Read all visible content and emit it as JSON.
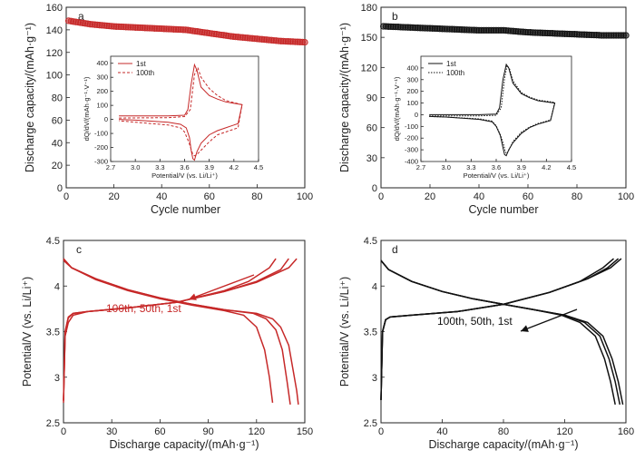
{
  "chart_data": [
    {
      "panel": "a",
      "type": "scatter",
      "xlabel": "Cycle number",
      "ylabel": "Discharge capacity/(mAh·g⁻¹)",
      "xlim": [
        0,
        100
      ],
      "ylim": [
        0,
        160
      ],
      "xticks": [
        0,
        20,
        40,
        60,
        80,
        100
      ],
      "yticks": [
        0,
        20,
        40,
        60,
        80,
        100,
        120,
        140,
        160
      ],
      "color": "#c62828",
      "series": [
        {
          "x": [
            1,
            10,
            20,
            30,
            40,
            50,
            60,
            70,
            80,
            90,
            100
          ],
          "y": [
            148,
            145,
            143,
            142,
            141,
            140,
            137,
            134,
            132,
            130,
            129
          ]
        }
      ],
      "inset": {
        "type": "line",
        "xlabel": "Potential/V (vs. Li/Li⁺)",
        "ylabel": "dQ/dV/(mAh·g⁻¹·V⁻¹)",
        "xlim": [
          2.7,
          4.5
        ],
        "ylim": [
          -300,
          450
        ],
        "xticks": [
          2.7,
          3.0,
          3.3,
          3.6,
          3.9,
          4.2,
          4.5
        ],
        "yticks": [
          -300,
          -200,
          -100,
          0,
          100,
          200,
          300,
          400
        ],
        "series": [
          {
            "name": "1st",
            "style": "solid",
            "x": [
              2.8,
              3.4,
              3.6,
              3.64,
              3.68,
              3.72,
              3.75,
              3.8,
              3.9,
              4.0,
              4.1,
              4.3,
              4.25,
              4.2,
              4.1,
              4.0,
              3.9,
              3.8,
              3.75,
              3.72,
              3.7,
              3.68,
              3.66,
              3.62,
              3.55,
              3.4,
              3.0,
              2.8
            ],
            "y": [
              25,
              25,
              30,
              70,
              250,
              390,
              350,
              230,
              170,
              145,
              125,
              105,
              -30,
              -40,
              -60,
              -80,
              -110,
              -170,
              -230,
              -290,
              -280,
              -220,
              -130,
              -60,
              -35,
              -20,
              -5,
              0
            ]
          },
          {
            "name": "100th",
            "style": "dashed",
            "x": [
              2.8,
              3.4,
              3.6,
              3.67,
              3.72,
              3.76,
              3.8,
              3.9,
              4.0,
              4.1,
              4.3,
              4.25,
              4.2,
              4.1,
              4.0,
              3.9,
              3.8,
              3.75,
              3.72,
              3.7,
              3.65,
              3.6,
              3.55,
              3.4,
              3.0,
              2.8
            ],
            "y": [
              10,
              12,
              20,
              70,
              320,
              370,
              300,
              220,
              170,
              135,
              105,
              -60,
              -70,
              -90,
              -110,
              -160,
              -220,
              -250,
              -260,
              -250,
              -160,
              -90,
              -60,
              -40,
              -20,
              -10
            ]
          }
        ]
      }
    },
    {
      "panel": "b",
      "type": "scatter",
      "xlabel": "Cycle number",
      "ylabel": "Discharge capacity/(mAh·g⁻¹)",
      "xlim": [
        0,
        100
      ],
      "ylim": [
        0,
        180
      ],
      "xticks": [
        0,
        20,
        40,
        60,
        80,
        100
      ],
      "yticks": [
        0,
        30,
        60,
        90,
        120,
        150,
        180
      ],
      "color": "#111111",
      "series": [
        {
          "x": [
            1,
            10,
            20,
            30,
            40,
            50,
            60,
            70,
            80,
            90,
            100
          ],
          "y": [
            161,
            160,
            159,
            158,
            157,
            157,
            155,
            154,
            153,
            152,
            152
          ]
        }
      ],
      "inset": {
        "type": "line",
        "xlabel": "Potential/V (vs. Li/Li⁺)",
        "ylabel": "dQ/dV/(mAh·g⁻¹·V⁻¹)",
        "xlim": [
          2.7,
          4.5
        ],
        "ylim": [
          -400,
          500
        ],
        "xticks": [
          2.7,
          3.0,
          3.3,
          3.6,
          3.9,
          4.2,
          4.5
        ],
        "yticks": [
          -400,
          -300,
          -200,
          -100,
          0,
          100,
          200,
          300,
          400
        ],
        "series": [
          {
            "name": "1st",
            "style": "solid",
            "x": [
              2.8,
              3.4,
              3.6,
              3.64,
              3.68,
              3.72,
              3.75,
              3.8,
              3.9,
              4.0,
              4.1,
              4.3,
              4.25,
              4.2,
              4.1,
              4.0,
              3.9,
              3.8,
              3.75,
              3.72,
              3.7,
              3.68,
              3.65,
              3.6,
              3.55,
              3.4,
              3.0,
              2.8
            ],
            "y": [
              0,
              0,
              5,
              60,
              300,
              430,
              400,
              270,
              180,
              145,
              120,
              100,
              -50,
              -60,
              -80,
              -110,
              -160,
              -240,
              -300,
              -350,
              -340,
              -280,
              -180,
              -100,
              -60,
              -40,
              -20,
              -15
            ]
          },
          {
            "name": "100th",
            "style": "dotted",
            "x": [
              2.8,
              3.4,
              3.6,
              3.66,
              3.7,
              3.73,
              3.76,
              3.8,
              3.9,
              4.0,
              4.1,
              4.3,
              4.25,
              4.2,
              4.1,
              4.0,
              3.9,
              3.8,
              3.76,
              3.73,
              3.71,
              3.69,
              3.65,
              3.6,
              3.55,
              3.4,
              3.0,
              2.8
            ],
            "y": [
              -10,
              -10,
              -5,
              60,
              310,
              420,
              390,
              290,
              190,
              150,
              125,
              105,
              -45,
              -55,
              -75,
              -105,
              -150,
              -230,
              -290,
              -330,
              -320,
              -260,
              -170,
              -95,
              -55,
              -35,
              -20,
              -15
            ]
          }
        ]
      }
    },
    {
      "panel": "c",
      "type": "line",
      "xlabel": "Discharge capacity/(mAh·g⁻¹)",
      "ylabel": "Potential/V (vs. Li/Li⁺)",
      "xlim": [
        0,
        150
      ],
      "ylim": [
        2.5,
        4.5
      ],
      "xticks": [
        0,
        30,
        60,
        90,
        120,
        150
      ],
      "yticks": [
        2.5,
        3.0,
        3.5,
        4.0,
        4.5
      ],
      "color": "#c62828",
      "annotation": "100th, 50th, 1st",
      "series": [
        {
          "cycle": "1st",
          "charge": {
            "x": [
              0,
              1,
              3,
              6,
              15,
              40,
              70,
              100,
              120,
              135,
              140
            ],
            "y": [
              2.72,
              3.5,
              3.65,
              3.7,
              3.72,
              3.76,
              3.82,
              3.94,
              4.05,
              4.18,
              4.3
            ]
          },
          "discharge": {
            "x": [
              0,
              5,
              20,
              40,
              60,
              80,
              100,
              120,
              130,
              135,
              140,
              143,
              145,
              146
            ],
            "y": [
              4.28,
              4.2,
              4.08,
              3.96,
              3.87,
              3.8,
              3.74,
              3.7,
              3.64,
              3.55,
              3.35,
              3.05,
              2.85,
              2.7
            ]
          }
        },
        {
          "cycle": "50th",
          "charge": {
            "x": [
              0,
              1,
              3,
              6,
              15,
              40,
              70,
              100,
              120,
              140,
              145
            ],
            "y": [
              2.74,
              3.5,
              3.66,
              3.7,
              3.72,
              3.76,
              3.82,
              3.94,
              4.04,
              4.2,
              4.3
            ]
          },
          "discharge": {
            "x": [
              0,
              5,
              20,
              40,
              60,
              80,
              100,
              118,
              126,
              132,
              136,
              139,
              141
            ],
            "y": [
              4.3,
              4.2,
              4.08,
              3.96,
              3.87,
              3.8,
              3.74,
              3.7,
              3.64,
              3.52,
              3.3,
              2.95,
              2.7
            ]
          }
        },
        {
          "cycle": "100th",
          "charge": {
            "x": [
              0,
              1,
              3,
              6,
              15,
              40,
              70,
              100,
              115,
              128,
              132
            ],
            "y": [
              2.75,
              3.45,
              3.6,
              3.68,
              3.72,
              3.76,
              3.82,
              3.95,
              4.05,
              4.2,
              4.3
            ]
          },
          "discharge": {
            "x": [
              0,
              5,
              20,
              40,
              60,
              80,
              100,
              112,
              120,
              125,
              128,
              130
            ],
            "y": [
              4.3,
              4.2,
              4.07,
              3.95,
              3.86,
              3.79,
              3.73,
              3.68,
              3.55,
              3.3,
              3.0,
              2.72
            ]
          }
        }
      ]
    },
    {
      "panel": "d",
      "type": "line",
      "xlabel": "Discharge capacity/(mAh·g⁻¹)",
      "ylabel": "Potential/V (vs. Li/Li⁺)",
      "xlim": [
        0,
        160
      ],
      "ylim": [
        2.5,
        4.5
      ],
      "xticks": [
        0,
        40,
        80,
        120,
        160
      ],
      "yticks": [
        2.5,
        3.0,
        3.5,
        4.0,
        4.5
      ],
      "color": "#111111",
      "annotation": "100th, 50th, 1st",
      "series": [
        {
          "cycle": "1st",
          "charge": {
            "x": [
              0,
              1,
              3,
              6,
              20,
              50,
              80,
              110,
              135,
              150,
              157
            ],
            "y": [
              2.75,
              3.5,
              3.63,
              3.66,
              3.68,
              3.72,
              3.8,
              3.93,
              4.08,
              4.2,
              4.3
            ]
          },
          "discharge": {
            "x": [
              0,
              5,
              20,
              40,
              60,
              80,
              100,
              120,
              135,
              145,
              151,
              155,
              158
            ],
            "y": [
              4.28,
              4.18,
              4.05,
              3.94,
              3.86,
              3.8,
              3.74,
              3.68,
              3.6,
              3.45,
              3.2,
              2.95,
              2.7
            ]
          }
        },
        {
          "cycle": "50th",
          "charge": {
            "x": [
              0,
              1,
              3,
              6,
              20,
              50,
              80,
              110,
              135,
              148,
              155
            ],
            "y": [
              2.75,
              3.5,
              3.63,
              3.66,
              3.68,
              3.72,
              3.8,
              3.93,
              4.08,
              4.2,
              4.3
            ]
          },
          "discharge": {
            "x": [
              0,
              5,
              20,
              40,
              60,
              80,
              100,
              120,
              133,
              143,
              149,
              153,
              156
            ],
            "y": [
              4.28,
              4.18,
              4.05,
              3.94,
              3.86,
              3.8,
              3.74,
              3.68,
              3.6,
              3.45,
              3.2,
              2.95,
              2.7
            ]
          }
        },
        {
          "cycle": "100th",
          "charge": {
            "x": [
              0,
              1,
              3,
              6,
              20,
              50,
              80,
              110,
              130,
              145,
              152
            ],
            "y": [
              2.75,
              3.5,
              3.63,
              3.66,
              3.68,
              3.72,
              3.8,
              3.93,
              4.05,
              4.2,
              4.3
            ]
          },
          "discharge": {
            "x": [
              0,
              5,
              20,
              40,
              60,
              80,
              100,
              118,
              130,
              140,
              146,
              150,
              153
            ],
            "y": [
              4.28,
              4.18,
              4.05,
              3.94,
              3.86,
              3.8,
              3.74,
              3.68,
              3.6,
              3.45,
              3.2,
              2.95,
              2.7
            ]
          }
        }
      ]
    }
  ]
}
